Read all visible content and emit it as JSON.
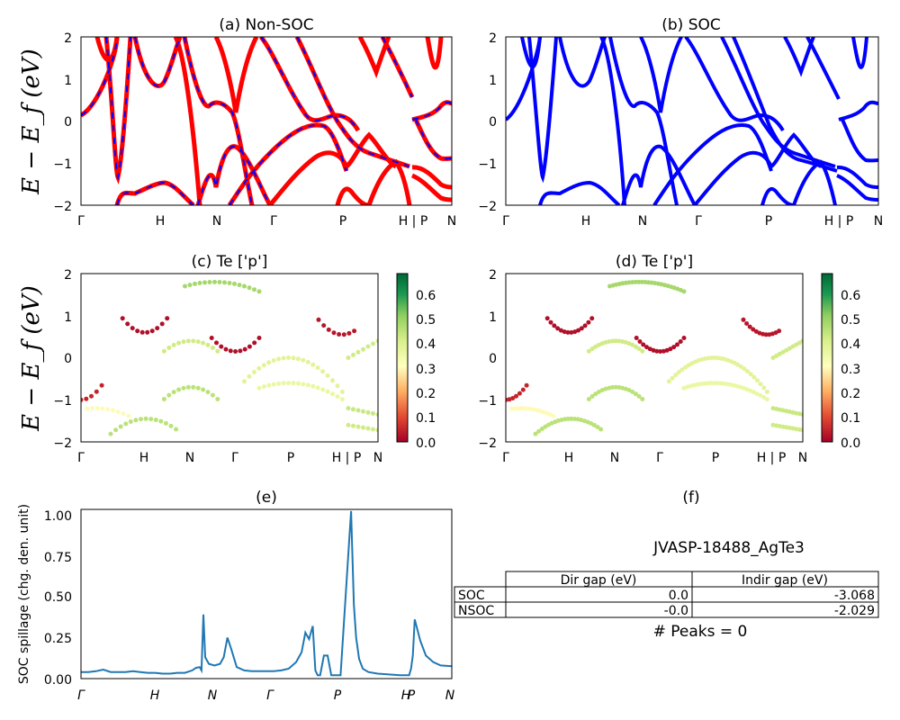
{
  "chart_data": [
    {
      "id": "a",
      "type": "line",
      "title": "(a) Non-SOC",
      "ylabel": "E − E_f (eV)",
      "ylim": [
        -2,
        2
      ],
      "yticks": [
        "2",
        "1",
        "0",
        "−1",
        "−2"
      ],
      "xticks": [
        "Γ",
        "H",
        "N",
        "Γ",
        "P",
        "H | P",
        "N"
      ],
      "colors": [
        "#ff0000",
        "#0000ff"
      ],
      "style": "red solid with blue dashed overlay"
    },
    {
      "id": "b",
      "type": "line",
      "title": "(b) SOC",
      "ylim": [
        -2,
        2
      ],
      "yticks": [
        "2",
        "1",
        "0",
        "−1",
        "−2"
      ],
      "xticks": [
        "Γ",
        "H",
        "N",
        "Γ",
        "P",
        "H | P",
        "N"
      ],
      "colors": [
        "#0000ff"
      ]
    },
    {
      "id": "c",
      "type": "scatter",
      "title": "(c)  Te ['p']",
      "ylabel": "E − E_f (eV)",
      "ylim": [
        -2,
        2
      ],
      "yticks": [
        "2",
        "1",
        "0",
        "−1",
        "−2"
      ],
      "xticks": [
        "Γ",
        "H",
        "N",
        "Γ",
        "P",
        "H | P",
        "N"
      ],
      "colorbar": {
        "ticks": [
          "0.6",
          "0.5",
          "0.4",
          "0.3",
          "0.2",
          "0.1",
          "0.0"
        ],
        "range": [
          0,
          0.68
        ],
        "colormap": "RdYlGn"
      }
    },
    {
      "id": "d",
      "type": "scatter",
      "title": "(d) Te ['p']",
      "ylim": [
        -2,
        2
      ],
      "yticks": [
        "2",
        "1",
        "0",
        "−1",
        "−2"
      ],
      "xticks": [
        "Γ",
        "H",
        "N",
        "Γ",
        "P",
        "H | P",
        "N"
      ],
      "colorbar": {
        "ticks": [
          "0.6",
          "0.5",
          "0.4",
          "0.3",
          "0.2",
          "0.1",
          "0.0"
        ],
        "range": [
          0,
          0.68
        ],
        "colormap": "RdYlGn"
      }
    },
    {
      "id": "e",
      "type": "line",
      "title": "(e)",
      "ylabel": "SOC spillage (chg. den. unit)",
      "ylim": [
        0,
        1.03
      ],
      "yticks": [
        "1.00",
        "0.75",
        "0.50",
        "0.25",
        "0.00"
      ],
      "xticks": [
        "Γ",
        "H",
        "N",
        "Γ",
        "P",
        "H",
        "P",
        "N"
      ],
      "color": "#1f77b4",
      "x": [
        0,
        0.02,
        0.04,
        0.06,
        0.08,
        0.1,
        0.12,
        0.14,
        0.16,
        0.18,
        0.2,
        0.22,
        0.24,
        0.26,
        0.28,
        0.3,
        0.31,
        0.32,
        0.325,
        0.33,
        0.335,
        0.345,
        0.36,
        0.375,
        0.385,
        0.395,
        0.405,
        0.42,
        0.44,
        0.46,
        0.48,
        0.5,
        0.52,
        0.54,
        0.56,
        0.58,
        0.595,
        0.605,
        0.615,
        0.625,
        0.632,
        0.638,
        0.645,
        0.655,
        0.665,
        0.675,
        0.69,
        0.7,
        0.7285,
        0.736,
        0.742,
        0.75,
        0.76,
        0.775,
        0.8,
        0.83,
        0.86,
        0.885,
        0.89,
        0.895,
        0.9,
        0.915,
        0.93,
        0.95,
        0.97,
        1.0
      ],
      "y": [
        0.04,
        0.04,
        0.045,
        0.055,
        0.04,
        0.04,
        0.04,
        0.045,
        0.04,
        0.035,
        0.035,
        0.03,
        0.03,
        0.035,
        0.035,
        0.05,
        0.065,
        0.07,
        0.05,
        0.39,
        0.13,
        0.09,
        0.08,
        0.09,
        0.13,
        0.25,
        0.18,
        0.07,
        0.05,
        0.045,
        0.045,
        0.045,
        0.045,
        0.05,
        0.06,
        0.1,
        0.16,
        0.28,
        0.24,
        0.32,
        0.05,
        0.02,
        0.02,
        0.14,
        0.14,
        0.02,
        0.02,
        0.02,
        1.02,
        0.45,
        0.25,
        0.12,
        0.06,
        0.04,
        0.03,
        0.025,
        0.02,
        0.02,
        0.06,
        0.14,
        0.36,
        0.23,
        0.14,
        0.1,
        0.08,
        0.075
      ]
    }
  ],
  "panel_f": {
    "title": "(f)",
    "caption": "JVASP-18488_AgTe3",
    "table": {
      "headers": [
        "",
        "Dir gap (eV)",
        "Indir gap (eV)"
      ],
      "rows": [
        {
          "label": "SOC",
          "dir": "0.0",
          "indir": "-3.068"
        },
        {
          "label": "NSOC",
          "dir": "-0.0",
          "indir": "-2.029"
        }
      ]
    },
    "peaks": "# Peaks = 0"
  }
}
